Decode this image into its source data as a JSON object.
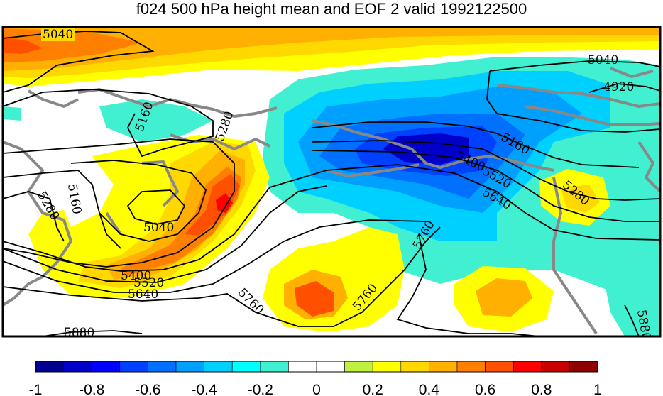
{
  "title": "f024 500 hPa height mean and EOF 2 valid 1992122500",
  "map": {
    "contour_labels": [
      {
        "id": "c5040a",
        "text": "5040"
      },
      {
        "id": "c5040b",
        "text": "5040"
      },
      {
        "id": "c4920",
        "text": "4920"
      },
      {
        "id": "c5160a",
        "text": "5160"
      },
      {
        "id": "c5280a",
        "text": "5280"
      },
      {
        "id": "c5160b",
        "text": "5160"
      },
      {
        "id": "c5280b",
        "text": "5280"
      },
      {
        "id": "c5040c",
        "text": "5040"
      },
      {
        "id": "c5400a",
        "text": "5400"
      },
      {
        "id": "c5520a",
        "text": "5520"
      },
      {
        "id": "c5640a",
        "text": "5640"
      },
      {
        "id": "c5760a",
        "text": "5760"
      },
      {
        "id": "c5880a",
        "text": "5880"
      },
      {
        "id": "c5160c",
        "text": "5160"
      },
      {
        "id": "c5400b",
        "text": "5400"
      },
      {
        "id": "c5520b",
        "text": "5520"
      },
      {
        "id": "c5640b",
        "text": "5640"
      },
      {
        "id": "c5280c",
        "text": "5280"
      },
      {
        "id": "c5760b",
        "text": "5760"
      },
      {
        "id": "c5760c",
        "text": "5760"
      },
      {
        "id": "c5880b",
        "text": "5880"
      }
    ]
  },
  "colorbar": {
    "colors": [
      "#00008f",
      "#0000c8",
      "#0000ff",
      "#0040ff",
      "#0070ff",
      "#00a0ff",
      "#00d0ff",
      "#00ffff",
      "#40f0d0",
      "#ffffff",
      "#ffffff",
      "#c0f040",
      "#ffff00",
      "#ffd800",
      "#ffb000",
      "#ff8000",
      "#ff5000",
      "#ff0000",
      "#c80000",
      "#8f0000"
    ],
    "ticks": [
      "-1",
      "-0.8",
      "-0.6",
      "-0.4",
      "-0.2",
      "0",
      "0.2",
      "0.4",
      "0.6",
      "0.8",
      "1"
    ]
  },
  "palette": {
    "contour_line": "#000000",
    "coastline": "#888888"
  }
}
